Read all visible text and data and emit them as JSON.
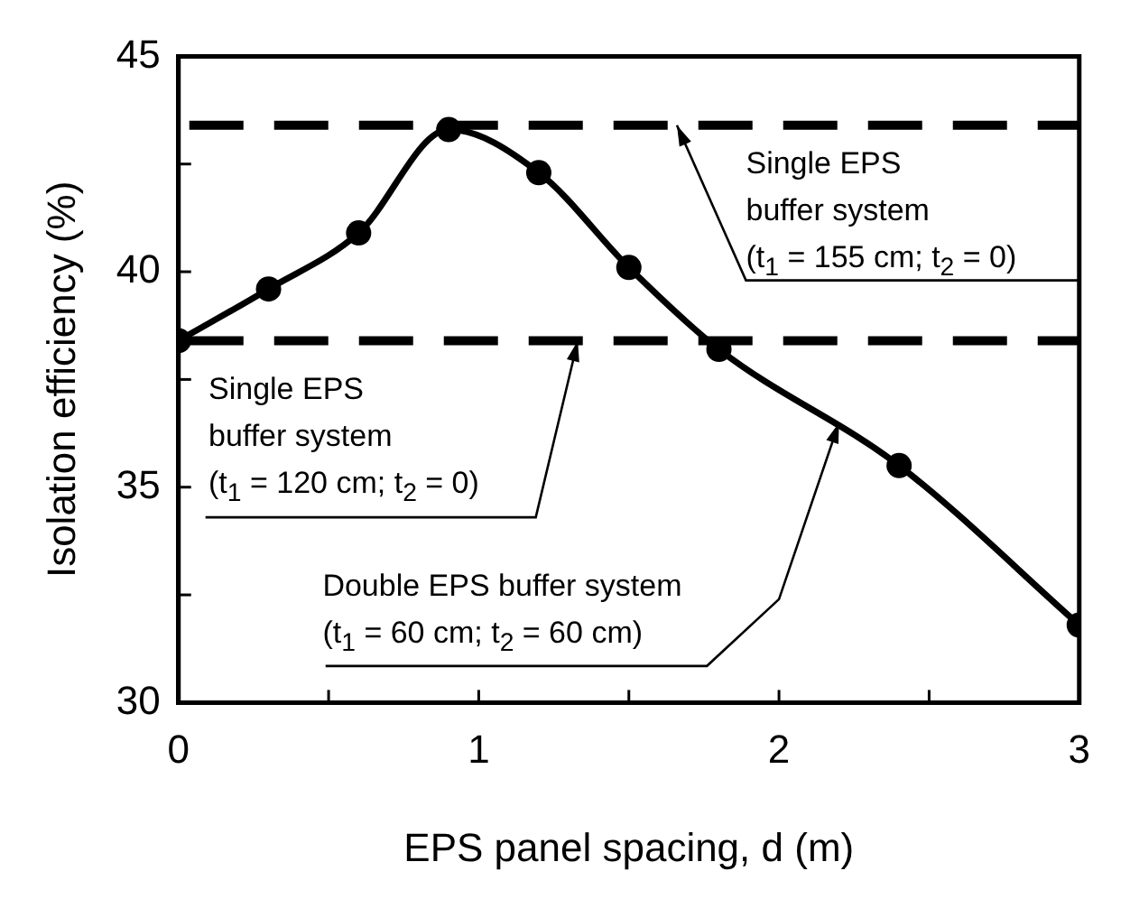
{
  "chart_data": {
    "type": "line",
    "xlabel": "EPS panel spacing, d (m)",
    "ylabel": "Isolation efficiency (%)",
    "x": [
      0,
      0.3,
      0.6,
      0.9,
      1.2,
      1.5,
      1.8,
      2.4,
      3.0
    ],
    "series": [
      {
        "color": "#000000",
        "values": [
          38.4,
          39.6,
          40.9,
          43.3,
          42.3,
          40.1,
          38.2,
          35.5,
          31.8
        ]
      }
    ],
    "xlim": [
      0,
      3
    ],
    "ylim": [
      30,
      45
    ],
    "xticks": [
      0,
      {
        "value": 0.5,
        "label": null
      },
      1,
      {
        "value": 1.5,
        "label": null
      },
      2,
      {
        "value": 2.5,
        "label": null
      },
      3
    ],
    "yticks": [
      30,
      {
        "value": 32.5,
        "label": null
      },
      35,
      {
        "value": 37.5,
        "label": null
      },
      40,
      {
        "value": 42.5,
        "label": null
      },
      45
    ],
    "ref_lines": [
      {
        "axis": "y",
        "value": 43.4,
        "color": "#000000",
        "line_style": "dashed"
      },
      {
        "axis": "y",
        "value": 38.4,
        "color": "#000000",
        "line_style": "dashed"
      }
    ],
    "annotations": [
      {
        "text": "Single EPS\nbuffer system\n(t$_{1}$ = 155 cm; t$_{2}$ = 0)",
        "x": 1.66,
        "y": 43.4
      },
      {
        "text": "Single EPS\nbuffer system\n(t$_{1}$ = 120 cm; t$_{2}$ = 0)",
        "x": 1.33,
        "y": 38.4
      },
      {
        "text": "Double EPS buffer system\n(t$_{1}$ = 60 cm; t$_{2}$ = 60 cm)",
        "x": 2.2,
        "y": 36.5
      }
    ],
    "grid": false,
    "legend": false,
    "marker": "circle",
    "line_style": "solid"
  }
}
